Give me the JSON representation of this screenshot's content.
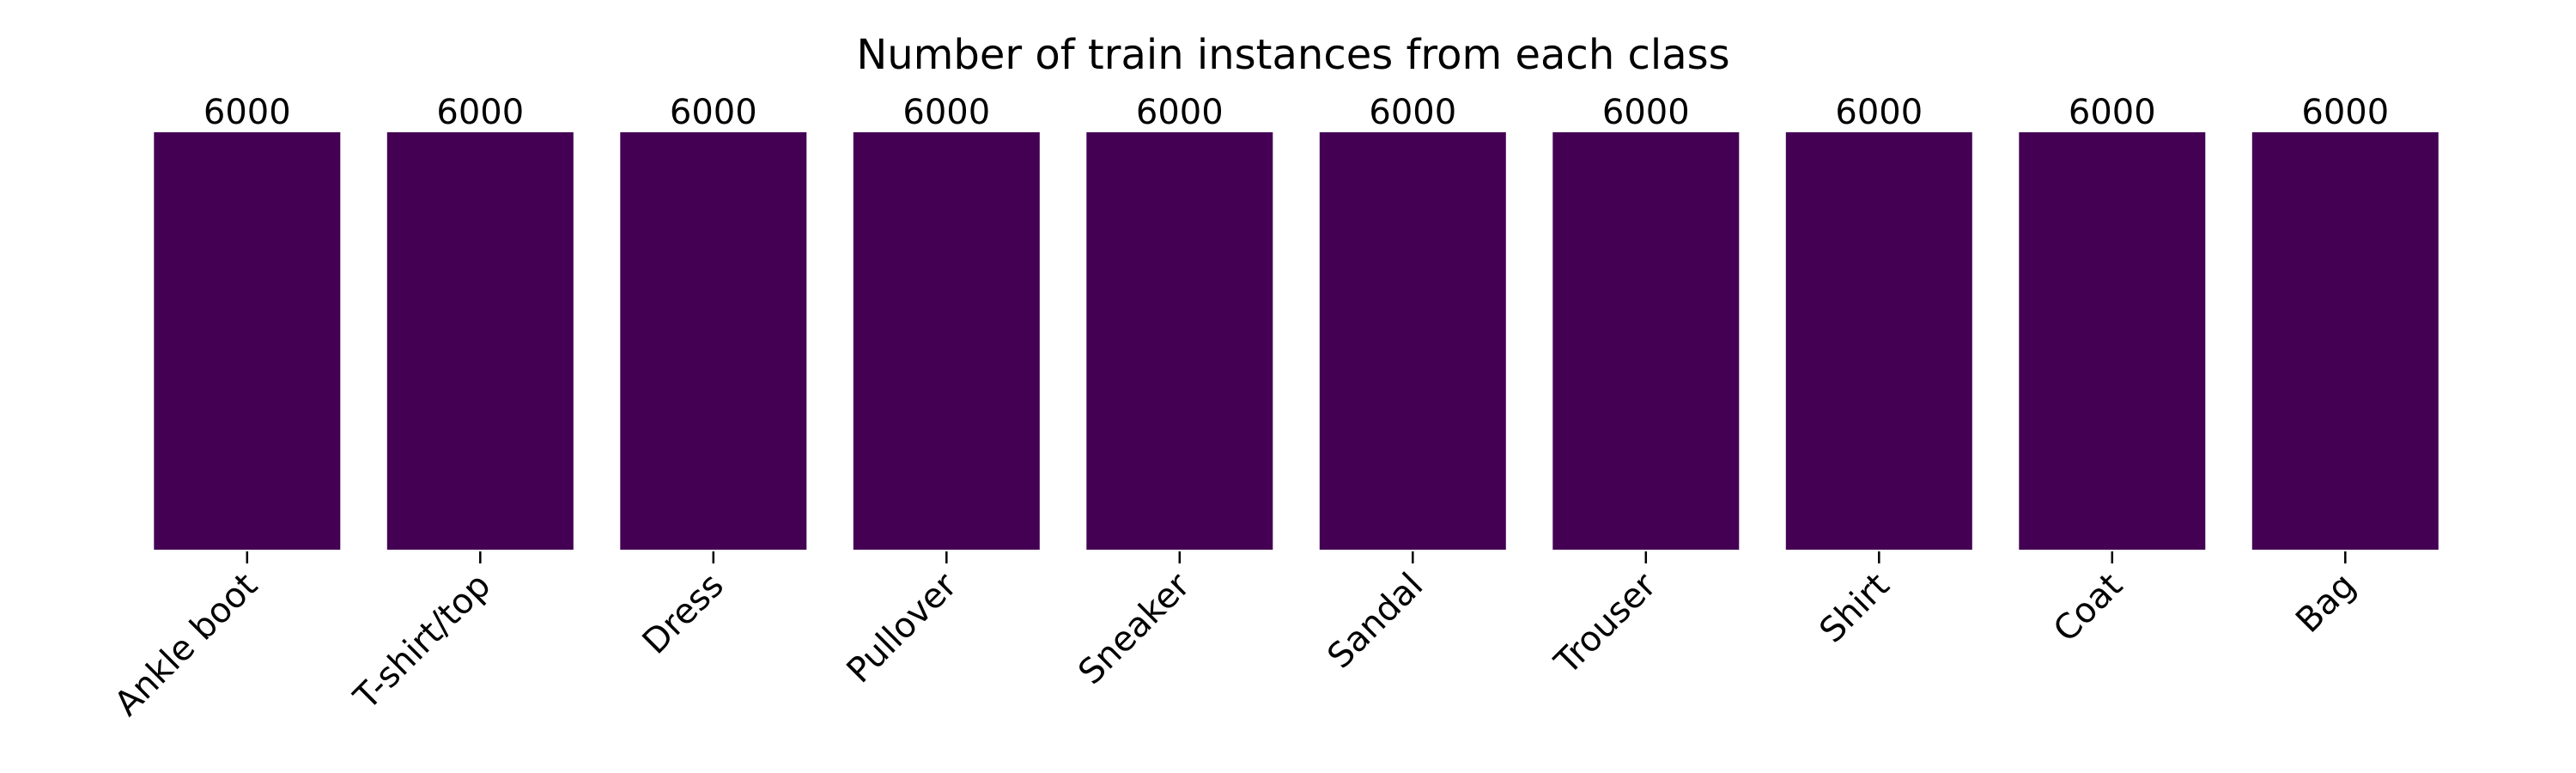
{
  "chart_data": {
    "type": "bar",
    "title": "Number of train instances from each class",
    "xlabel": "",
    "ylabel": "",
    "categories": [
      "Ankle boot",
      "T-shirt/top",
      "Dress",
      "Pullover",
      "Sneaker",
      "Sandal",
      "Trouser",
      "Shirt",
      "Coat",
      "Bag"
    ],
    "values": [
      6000,
      6000,
      6000,
      6000,
      6000,
      6000,
      6000,
      6000,
      6000,
      6000
    ],
    "data_labels": [
      "6000",
      "6000",
      "6000",
      "6000",
      "6000",
      "6000",
      "6000",
      "6000",
      "6000",
      "6000"
    ],
    "ylim": [
      0,
      6000
    ],
    "grid": false,
    "legend": "none",
    "y_axis_visible": false,
    "tick_label_rotation_deg": 45,
    "bar_color": "#440154"
  }
}
